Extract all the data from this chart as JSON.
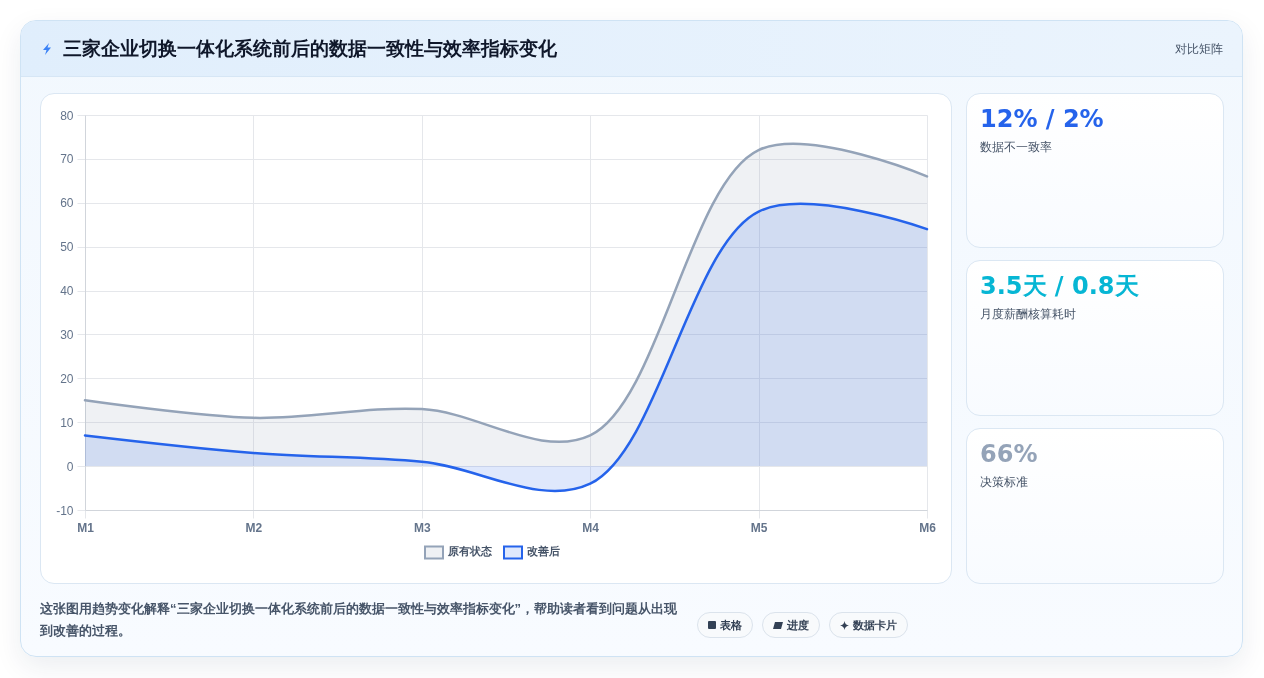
{
  "chart_data": [
    {
      "type": "area",
      "title": "三家企业切换一体化系统前后的数据一致性与效率指标变化",
      "categories": [
        "M1",
        "M2",
        "M3",
        "M4",
        "M5",
        "M6"
      ],
      "series": [
        {
          "name": "原有状态",
          "color": "#94a3b8",
          "values": [
            15,
            11,
            13,
            7,
            72,
            66
          ]
        },
        {
          "name": "改善后",
          "color": "#2563eb",
          "values": [
            7,
            3,
            1,
            -4,
            58,
            54
          ]
        }
      ],
      "ylim": [
        -10,
        80
      ],
      "yticks": [
        -10,
        0,
        10,
        20,
        30,
        40,
        50,
        60,
        70,
        80
      ],
      "grid": true,
      "legend": "bottom",
      "annotations": [
        "对比矩阵",
        "这张图用趋势变化解释“三家企业切换一体化系统前后的数据一致性与效率指标变化”，帮助读者看到问题从出现到改善的过程。",
        "表格",
        "进度",
        "数据卡片"
      ]
    },
    {
      "type": "other",
      "title": "12% / 2%",
      "annotations": [
        "数据不一致率"
      ]
    },
    {
      "type": "other",
      "title": "3.5天 / 0.8天",
      "annotations": [
        "月度薪酬核算耗时"
      ]
    },
    {
      "type": "other",
      "title": "66%",
      "annotations": [
        "决策标准"
      ]
    }
  ]
}
